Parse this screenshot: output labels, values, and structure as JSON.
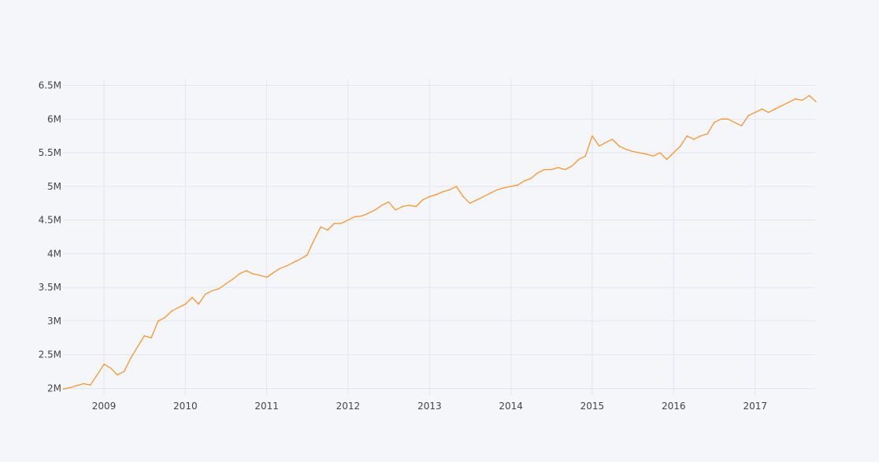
{
  "chart_data": {
    "type": "line",
    "title": "",
    "xlabel": "",
    "ylabel": "",
    "xlim": [
      "2008-07-01",
      "2017-10-01"
    ],
    "ylim": [
      1900000,
      6600000
    ],
    "grid": true,
    "line_color": "#f7962f",
    "x_ticks": [
      {
        "x": "2009-01-01",
        "label": "2009"
      },
      {
        "x": "2010-01-01",
        "label": "2010"
      },
      {
        "x": "2011-01-01",
        "label": "2011"
      },
      {
        "x": "2012-01-01",
        "label": "2012"
      },
      {
        "x": "2013-01-01",
        "label": "2013"
      },
      {
        "x": "2014-01-01",
        "label": "2014"
      },
      {
        "x": "2015-01-01",
        "label": "2015"
      },
      {
        "x": "2016-01-01",
        "label": "2016"
      },
      {
        "x": "2017-01-01",
        "label": "2017"
      }
    ],
    "y_ticks": [
      {
        "y": 2000000,
        "label": "2M"
      },
      {
        "y": 2500000,
        "label": "2.5M"
      },
      {
        "y": 3000000,
        "label": "3M"
      },
      {
        "y": 3500000,
        "label": "3.5M"
      },
      {
        "y": 4000000,
        "label": "4M"
      },
      {
        "y": 4500000,
        "label": "4.5M"
      },
      {
        "y": 5000000,
        "label": "5M"
      },
      {
        "y": 5500000,
        "label": "5.5M"
      },
      {
        "y": 6000000,
        "label": "6M"
      },
      {
        "y": 6500000,
        "label": "6.5M"
      }
    ],
    "series": [
      {
        "x": [
          "2008-07-01",
          "2008-08-01",
          "2008-09-01",
          "2008-10-01",
          "2008-11-01",
          "2008-12-01",
          "2009-01-01",
          "2009-02-01",
          "2009-03-01",
          "2009-04-01",
          "2009-05-01",
          "2009-06-01",
          "2009-07-01",
          "2009-08-01",
          "2009-09-01",
          "2009-10-01",
          "2009-11-01",
          "2009-12-01",
          "2010-01-01",
          "2010-02-01",
          "2010-03-01",
          "2010-04-01",
          "2010-05-01",
          "2010-06-01",
          "2010-07-01",
          "2010-08-01",
          "2010-09-01",
          "2010-10-01",
          "2010-11-01",
          "2010-12-01",
          "2011-01-01",
          "2011-02-01",
          "2011-03-01",
          "2011-04-01",
          "2011-05-01",
          "2011-06-01",
          "2011-07-01",
          "2011-08-01",
          "2011-09-01",
          "2011-10-01",
          "2011-11-01",
          "2011-12-01",
          "2012-01-01",
          "2012-02-01",
          "2012-03-01",
          "2012-04-01",
          "2012-05-01",
          "2012-06-01",
          "2012-07-01",
          "2012-08-01",
          "2012-09-01",
          "2012-10-01",
          "2012-11-01",
          "2012-12-01",
          "2013-01-01",
          "2013-02-01",
          "2013-03-01",
          "2013-04-01",
          "2013-05-01",
          "2013-06-01",
          "2013-07-01",
          "2013-08-01",
          "2013-09-01",
          "2013-10-01",
          "2013-11-01",
          "2013-12-01",
          "2014-01-01",
          "2014-02-01",
          "2014-03-01",
          "2014-04-01",
          "2014-05-01",
          "2014-06-01",
          "2014-07-01",
          "2014-08-01",
          "2014-09-01",
          "2014-10-01",
          "2014-11-01",
          "2014-12-01",
          "2015-01-01",
          "2015-02-01",
          "2015-03-01",
          "2015-04-01",
          "2015-05-01",
          "2015-06-01",
          "2015-07-01",
          "2015-08-01",
          "2015-09-01",
          "2015-10-01",
          "2015-11-01",
          "2015-12-01",
          "2016-01-01",
          "2016-02-01",
          "2016-03-01",
          "2016-04-01",
          "2016-05-01",
          "2016-06-01",
          "2016-07-01",
          "2016-08-01",
          "2016-09-01",
          "2016-10-01",
          "2016-11-01",
          "2016-12-01",
          "2017-01-01",
          "2017-02-01",
          "2017-03-01",
          "2017-04-01",
          "2017-05-01",
          "2017-06-01",
          "2017-07-01",
          "2017-08-01",
          "2017-09-01",
          "2017-10-01"
        ],
        "y": [
          1990000,
          2010000,
          2040000,
          2070000,
          2050000,
          2200000,
          2360000,
          2300000,
          2200000,
          2250000,
          2450000,
          2620000,
          2780000,
          2750000,
          3000000,
          3050000,
          3150000,
          3200000,
          3250000,
          3350000,
          3250000,
          3400000,
          3450000,
          3480000,
          3550000,
          3620000,
          3700000,
          3750000,
          3700000,
          3680000,
          3650000,
          3720000,
          3780000,
          3820000,
          3870000,
          3920000,
          3980000,
          4200000,
          4400000,
          4350000,
          4450000,
          4450000,
          4500000,
          4550000,
          4560000,
          4600000,
          4650000,
          4720000,
          4770000,
          4650000,
          4700000,
          4720000,
          4700000,
          4800000,
          4850000,
          4880000,
          4920000,
          4950000,
          5000000,
          4850000,
          4750000,
          4800000,
          4850000,
          4900000,
          4950000,
          4980000,
          5000000,
          5020000,
          5080000,
          5120000,
          5200000,
          5250000,
          5250000,
          5280000,
          5250000,
          5300000,
          5400000,
          5450000,
          5750000,
          5600000,
          5650000,
          5700000,
          5600000,
          5550000,
          5520000,
          5500000,
          5480000,
          5450000,
          5500000,
          5400000,
          5500000,
          5600000,
          5750000,
          5700000,
          5750000,
          5780000,
          5950000,
          6000000,
          6000000,
          5950000,
          5900000,
          6050000,
          6100000,
          6150000,
          6100000,
          6150000,
          6200000,
          6250000,
          6300000,
          6280000,
          6350000,
          6260000
        ]
      }
    ]
  }
}
